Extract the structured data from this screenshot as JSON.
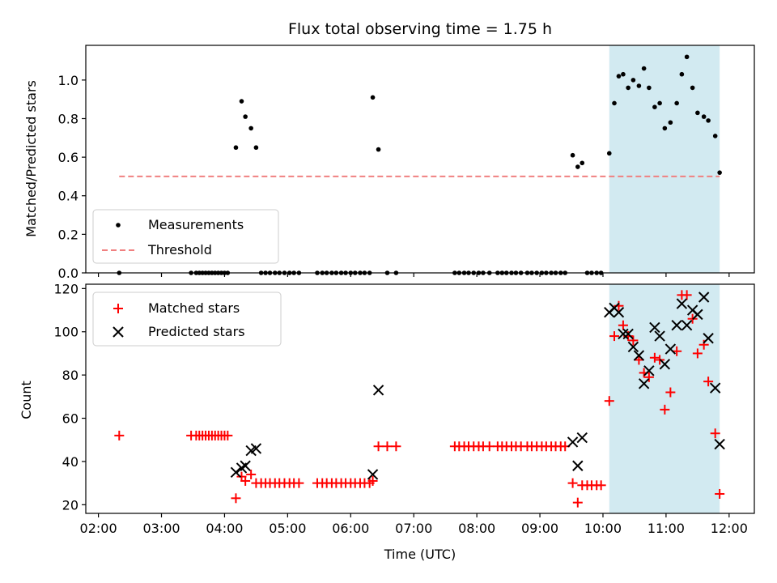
{
  "chart_data": [
    {
      "type": "scatter",
      "title": "Flux total observing time = 1.75 h",
      "xlabel": "",
      "ylabel": "Matched/Predicted stars",
      "ylim": [
        0,
        1.18
      ],
      "yticks": [
        "0.0",
        "0.2",
        "0.4",
        "0.6",
        "0.8",
        "1.0"
      ],
      "yticks_values": [
        0,
        0.2,
        0.4,
        0.6,
        0.8,
        1.0
      ],
      "xlim": [
        1.8,
        12.4
      ],
      "xticks_values": [
        2,
        3,
        4,
        5,
        6,
        7,
        8,
        9,
        10,
        11,
        12
      ],
      "xticks_labels": false,
      "highlight_span": {
        "x0": 10.1,
        "x1": 11.85,
        "color": "#add8e6"
      },
      "legend": "lower-left",
      "grid": false,
      "series": [
        {
          "name": "Measurements",
          "marker": "dot",
          "color": "#000000",
          "x": [
            2.33,
            3.47,
            3.55,
            3.6,
            3.65,
            3.7,
            3.75,
            3.8,
            3.85,
            3.9,
            3.95,
            4.0,
            4.05,
            4.18,
            4.27,
            4.33,
            4.42,
            4.5,
            4.58,
            4.65,
            4.72,
            4.8,
            4.87,
            4.95,
            5.03,
            5.1,
            5.18,
            5.47,
            5.55,
            5.62,
            5.7,
            5.77,
            5.85,
            5.92,
            6.0,
            6.07,
            6.15,
            6.22,
            6.3,
            6.35,
            6.44,
            6.58,
            6.72,
            7.65,
            7.72,
            7.8,
            7.87,
            7.95,
            8.03,
            8.1,
            8.2,
            8.33,
            8.4,
            8.47,
            8.55,
            8.62,
            8.7,
            8.8,
            8.87,
            8.95,
            9.03,
            9.1,
            9.18,
            9.25,
            9.33,
            9.4,
            9.52,
            9.6,
            9.67,
            9.75,
            9.82,
            9.9,
            9.97,
            10.1,
            10.18,
            10.25,
            10.32,
            10.4,
            10.48,
            10.57,
            10.65,
            10.73,
            10.82,
            10.9,
            10.98,
            11.07,
            11.17,
            11.25,
            11.33,
            11.42,
            11.5,
            11.6,
            11.67,
            11.78,
            11.85
          ],
          "y": [
            0.0,
            0.0,
            0.0,
            0.0,
            0.0,
            0.0,
            0.0,
            0.0,
            0.0,
            0.0,
            0.0,
            0.0,
            0.0,
            0.65,
            0.89,
            0.81,
            0.75,
            0.65,
            0.0,
            0.0,
            0.0,
            0.0,
            0.0,
            0.0,
            0.0,
            0.0,
            0.0,
            0.0,
            0.0,
            0.0,
            0.0,
            0.0,
            0.0,
            0.0,
            0.0,
            0.0,
            0.0,
            0.0,
            0.0,
            0.91,
            0.64,
            0.0,
            0.0,
            0.0,
            0.0,
            0.0,
            0.0,
            0.0,
            0.0,
            0.0,
            0.0,
            0.0,
            0.0,
            0.0,
            0.0,
            0.0,
            0.0,
            0.0,
            0.0,
            0.0,
            0.0,
            0.0,
            0.0,
            0.0,
            0.0,
            0.0,
            0.61,
            0.55,
            0.57,
            0.0,
            0.0,
            0.0,
            0.0,
            0.62,
            0.88,
            1.02,
            1.03,
            0.96,
            1.0,
            0.97,
            1.06,
            0.96,
            0.86,
            0.88,
            0.75,
            0.78,
            0.88,
            1.03,
            1.12,
            0.96,
            0.83,
            0.81,
            0.79,
            0.71,
            0.52
          ]
        },
        {
          "name": "Threshold",
          "marker": "dashed-line",
          "color": "#f08080",
          "x": [
            2.33,
            11.85
          ],
          "y": [
            0.5,
            0.5
          ]
        }
      ]
    },
    {
      "type": "scatter",
      "title": "",
      "xlabel": "Time (UTC)",
      "ylabel": "Count",
      "ylim": [
        16,
        122
      ],
      "yticks": [
        "20",
        "40",
        "60",
        "80",
        "100",
        "120"
      ],
      "yticks_values": [
        20,
        40,
        60,
        80,
        100,
        120
      ],
      "xlim": [
        1.8,
        12.4
      ],
      "xticks_values": [
        2,
        3,
        4,
        5,
        6,
        7,
        8,
        9,
        10,
        11,
        12
      ],
      "xticks": [
        "02:00",
        "03:00",
        "04:00",
        "05:00",
        "06:00",
        "07:00",
        "08:00",
        "09:00",
        "10:00",
        "11:00",
        "12:00"
      ],
      "highlight_span": {
        "x0": 10.1,
        "x1": 11.85,
        "color": "#add8e6"
      },
      "legend": "top-left",
      "grid": false,
      "series": [
        {
          "name": "Matched stars",
          "marker": "plus",
          "color": "#ff0000",
          "x": [
            2.33,
            3.47,
            3.55,
            3.6,
            3.65,
            3.7,
            3.75,
            3.8,
            3.85,
            3.9,
            3.95,
            4.0,
            4.05,
            4.18,
            4.27,
            4.33,
            4.42,
            4.5,
            4.58,
            4.65,
            4.72,
            4.8,
            4.87,
            4.95,
            5.03,
            5.1,
            5.18,
            5.47,
            5.55,
            5.62,
            5.7,
            5.77,
            5.85,
            5.92,
            6.0,
            6.07,
            6.15,
            6.22,
            6.3,
            6.35,
            6.44,
            6.58,
            6.72,
            7.65,
            7.72,
            7.8,
            7.87,
            7.95,
            8.03,
            8.1,
            8.2,
            8.33,
            8.4,
            8.47,
            8.55,
            8.62,
            8.7,
            8.8,
            8.87,
            8.95,
            9.03,
            9.1,
            9.18,
            9.25,
            9.33,
            9.4,
            9.52,
            9.6,
            9.67,
            9.75,
            9.82,
            9.9,
            9.97,
            10.1,
            10.18,
            10.25,
            10.32,
            10.4,
            10.48,
            10.57,
            10.65,
            10.73,
            10.82,
            10.9,
            10.98,
            11.07,
            11.17,
            11.25,
            11.33,
            11.42,
            11.5,
            11.6,
            11.67,
            11.78,
            11.85
          ],
          "y": [
            52,
            52,
            52,
            52,
            52,
            52,
            52,
            52,
            52,
            52,
            52,
            52,
            52,
            23,
            33,
            31,
            34,
            30,
            30,
            30,
            30,
            30,
            30,
            30,
            30,
            30,
            30,
            30,
            30,
            30,
            30,
            30,
            30,
            30,
            30,
            30,
            30,
            30,
            30,
            31,
            47,
            47,
            47,
            47,
            47,
            47,
            47,
            47,
            47,
            47,
            47,
            47,
            47,
            47,
            47,
            47,
            47,
            47,
            47,
            47,
            47,
            47,
            47,
            47,
            47,
            47,
            30,
            21,
            29,
            29,
            29,
            29,
            29,
            68,
            98,
            112,
            103,
            98,
            96,
            87,
            81,
            79,
            88,
            87,
            64,
            72,
            91,
            117,
            117,
            106,
            90,
            94,
            77,
            53,
            25
          ]
        },
        {
          "name": "Predicted stars",
          "marker": "x",
          "color": "#000000",
          "x": [
            4.18,
            4.27,
            4.33,
            4.42,
            4.5,
            6.35,
            6.44,
            9.52,
            9.6,
            9.67,
            10.1,
            10.18,
            10.25,
            10.32,
            10.4,
            10.48,
            10.57,
            10.65,
            10.73,
            10.82,
            10.9,
            10.98,
            11.07,
            11.17,
            11.25,
            11.33,
            11.42,
            11.5,
            11.6,
            11.67,
            11.78,
            11.85
          ],
          "y": [
            35,
            37,
            38,
            45,
            46,
            34,
            73,
            49,
            38,
            51,
            109,
            111,
            109,
            99,
            99,
            93,
            89,
            76,
            82,
            102,
            98,
            85,
            92,
            103,
            113,
            103,
            110,
            108,
            116,
            97,
            74,
            48
          ]
        }
      ]
    }
  ]
}
